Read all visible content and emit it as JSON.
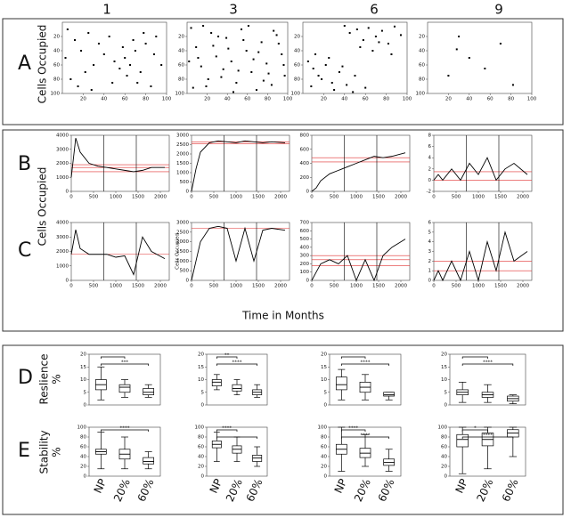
{
  "column_labels": [
    "1",
    "3",
    "6",
    "9"
  ],
  "row_labels": [
    "A",
    "B",
    "C",
    "D",
    "E"
  ],
  "y_titles": [
    "Cells Occupied",
    "Cells Occupied",
    "Reslience",
    "%",
    "Stability",
    "%"
  ],
  "x_title": "Time in Months",
  "chart_data": [
    {
      "type": "scatter",
      "xlim": [
        0,
        100
      ],
      "ylim": [
        100,
        0
      ],
      "xticks": [
        20,
        40,
        60,
        80,
        100
      ],
      "yticks": [
        20,
        40,
        60,
        80,
        100
      ],
      "color": "#000000",
      "x": [
        5,
        12,
        18,
        25,
        30,
        35,
        8,
        15,
        22,
        40,
        45,
        50,
        55,
        60,
        62,
        65,
        70,
        72,
        75,
        80,
        85,
        90,
        95,
        3,
        28,
        48,
        58,
        68,
        78,
        88
      ],
      "y": [
        10,
        25,
        40,
        15,
        60,
        30,
        80,
        90,
        70,
        45,
        20,
        55,
        65,
        50,
        75,
        60,
        40,
        85,
        70,
        30,
        90,
        20,
        60,
        50,
        95,
        85,
        35,
        25,
        15,
        45
      ]
    },
    {
      "type": "scatter",
      "xlim": [
        0,
        100
      ],
      "ylim": [
        100,
        0
      ],
      "xticks": [
        20,
        40,
        60,
        80,
        100
      ],
      "yticks": [
        20,
        40,
        60,
        80,
        100
      ],
      "color": "#000000",
      "x": [
        4,
        9,
        14,
        19,
        24,
        29,
        34,
        39,
        44,
        49,
        54,
        59,
        64,
        69,
        74,
        79,
        84,
        89,
        94,
        97,
        6,
        16,
        26,
        36,
        46,
        56,
        66,
        76,
        86,
        96,
        11,
        21,
        31,
        41,
        51,
        61,
        71,
        81,
        91,
        2
      ],
      "y": [
        8,
        35,
        62,
        90,
        15,
        48,
        77,
        22,
        55,
        85,
        10,
        40,
        70,
        95,
        28,
        58,
        88,
        18,
        45,
        75,
        92,
        5,
        33,
        66,
        98,
        25,
        52,
        82,
        12,
        60,
        50,
        80,
        20,
        37,
        68,
        5,
        42,
        72,
        30,
        55
      ]
    },
    {
      "type": "scatter",
      "xlim": [
        0,
        100
      ],
      "ylim": [
        100,
        0
      ],
      "xticks": [
        20,
        40,
        60,
        80,
        100
      ],
      "yticks": [
        20,
        40,
        60,
        80,
        100
      ],
      "color": "#000000",
      "x": [
        40,
        45,
        52,
        58,
        63,
        70,
        76,
        82,
        88,
        94,
        55,
        67,
        73,
        85,
        5,
        10,
        15,
        22,
        28,
        35,
        8,
        18,
        30,
        42,
        50,
        60,
        12,
        25,
        38,
        48
      ],
      "y": [
        5,
        15,
        10,
        25,
        8,
        20,
        12,
        30,
        6,
        18,
        35,
        40,
        28,
        45,
        55,
        65,
        75,
        60,
        85,
        70,
        90,
        80,
        95,
        88,
        75,
        92,
        45,
        50,
        62,
        98
      ]
    },
    {
      "type": "scatter",
      "xlim": [
        0,
        100
      ],
      "ylim": [
        100,
        0
      ],
      "xticks": [
        20,
        40,
        60,
        80,
        100
      ],
      "yticks": [
        20,
        40,
        60,
        80,
        100
      ],
      "color": "#000000",
      "x": [
        30,
        28,
        70,
        20,
        55,
        82,
        40
      ],
      "y": [
        20,
        38,
        30,
        75,
        65,
        88,
        50
      ]
    },
    {
      "type": "line",
      "xlim": [
        0,
        2200
      ],
      "ylim": [
        0,
        4000
      ],
      "xticks": [
        0,
        500,
        1000,
        1500,
        2000
      ],
      "yticks": [
        0,
        1000,
        2000,
        3000,
        4000
      ],
      "color": "#000000",
      "vlines": [
        730,
        1460
      ],
      "hlines": [
        1400,
        1700,
        1900
      ],
      "hline_color": "#e03030",
      "x": [
        0,
        100,
        200,
        400,
        600,
        800,
        1000,
        1200,
        1400,
        1600,
        1800,
        2100
      ],
      "values": [
        1000,
        3800,
        2800,
        2000,
        1800,
        1700,
        1600,
        1500,
        1400,
        1500,
        1700,
        1700
      ]
    },
    {
      "type": "line",
      "xlim": [
        0,
        2200
      ],
      "ylim": [
        0,
        3000
      ],
      "xticks": [
        0,
        500,
        1000,
        1500,
        2000
      ],
      "yticks": [
        0,
        500,
        1000,
        1500,
        2000,
        2500,
        3000
      ],
      "color": "#000000",
      "vlines": [
        730,
        1460
      ],
      "hlines": [
        2550,
        2650
      ],
      "hline_color": "#e03030",
      "x": [
        0,
        100,
        200,
        400,
        600,
        800,
        1000,
        1200,
        1400,
        1600,
        1800,
        2100
      ],
      "values": [
        0,
        1200,
        2100,
        2600,
        2700,
        2650,
        2600,
        2700,
        2650,
        2600,
        2650,
        2600
      ]
    },
    {
      "type": "line",
      "xlim": [
        0,
        2200
      ],
      "ylim": [
        0,
        800
      ],
      "xticks": [
        0,
        500,
        1000,
        1500,
        2000
      ],
      "yticks": [
        0,
        200,
        400,
        600,
        800
      ],
      "color": "#000000",
      "vlines": [
        730,
        1460
      ],
      "hlines": [
        420,
        480
      ],
      "hline_color": "#e03030",
      "x": [
        0,
        100,
        200,
        400,
        600,
        800,
        1000,
        1200,
        1400,
        1600,
        1800,
        2100
      ],
      "values": [
        0,
        50,
        150,
        250,
        300,
        350,
        400,
        450,
        500,
        480,
        500,
        550
      ]
    },
    {
      "type": "line",
      "xlim": [
        0,
        2200
      ],
      "ylim": [
        -2,
        8
      ],
      "xticks": [
        0,
        500,
        1000,
        1500,
        2000
      ],
      "yticks": [
        -2,
        0,
        2,
        4,
        6,
        8
      ],
      "color": "#000000",
      "vlines": [
        730,
        1460
      ],
      "hlines": [
        0,
        1.5
      ],
      "hline_color": "#e03030",
      "x": [
        0,
        100,
        200,
        400,
        600,
        800,
        1000,
        1200,
        1400,
        1600,
        1800,
        2100
      ],
      "values": [
        0,
        1,
        0,
        2,
        0,
        3,
        1,
        4,
        0,
        2,
        3,
        1
      ]
    },
    {
      "type": "line",
      "xlim": [
        0,
        2200
      ],
      "ylim": [
        0,
        4000
      ],
      "xticks": [
        0,
        500,
        1000,
        1500,
        2000
      ],
      "yticks": [
        0,
        1000,
        2000,
        3000,
        4000
      ],
      "color": "#000000",
      "vlines": [
        730,
        1460
      ],
      "hlines": [
        1800
      ],
      "hline_color": "#e03030",
      "x": [
        0,
        100,
        200,
        400,
        600,
        800,
        1000,
        1200,
        1400,
        1600,
        1800,
        2100
      ],
      "values": [
        1800,
        3500,
        2200,
        1800,
        1800,
        1800,
        1600,
        1700,
        400,
        3000,
        2000,
        1500
      ]
    },
    {
      "type": "line",
      "xlim": [
        0,
        2200
      ],
      "ylim": [
        0,
        3000
      ],
      "xticks": [
        0,
        500,
        1000,
        1500,
        2000
      ],
      "yticks": [
        0,
        500,
        1000,
        1500,
        2000,
        2500,
        3000
      ],
      "color": "#000000",
      "vlines": [
        730,
        1460
      ],
      "hlines": [
        2700
      ],
      "hline_color": "#e03030",
      "ylabel": "Cells Occupied",
      "x": [
        0,
        100,
        200,
        400,
        600,
        800,
        1000,
        1200,
        1400,
        1600,
        1800,
        2100
      ],
      "values": [
        0,
        1000,
        2000,
        2700,
        2800,
        2700,
        1000,
        2700,
        1000,
        2600,
        2700,
        2600
      ]
    },
    {
      "type": "line",
      "xlim": [
        0,
        2200
      ],
      "ylim": [
        0,
        700
      ],
      "xticks": [
        0,
        500,
        1000,
        1500,
        2000
      ],
      "yticks": [
        0,
        100,
        200,
        300,
        400,
        500,
        600,
        700
      ],
      "color": "#000000",
      "vlines": [
        730,
        1460
      ],
      "hlines": [
        180,
        250,
        300
      ],
      "hline_color": "#e03030",
      "x": [
        0,
        100,
        200,
        400,
        600,
        800,
        1000,
        1200,
        1400,
        1600,
        1800,
        2100
      ],
      "values": [
        0,
        100,
        200,
        250,
        200,
        300,
        0,
        250,
        0,
        300,
        400,
        500
      ]
    },
    {
      "type": "line",
      "xlim": [
        0,
        2200
      ],
      "ylim": [
        0,
        6
      ],
      "xticks": [
        0,
        500,
        1000,
        1500,
        2000
      ],
      "yticks": [
        0,
        1,
        2,
        3,
        4,
        5,
        6
      ],
      "color": "#000000",
      "vlines": [
        730,
        1460
      ],
      "hlines": [
        1,
        2
      ],
      "hline_color": "#e03030",
      "x": [
        0,
        100,
        200,
        400,
        600,
        800,
        1000,
        1200,
        1400,
        1600,
        1800,
        2100
      ],
      "values": [
        0,
        1,
        0,
        2,
        0,
        3,
        0,
        4,
        1,
        5,
        2,
        3
      ]
    },
    {
      "type": "box",
      "ylim": [
        0,
        20
      ],
      "yticks": [
        0,
        5,
        10,
        15,
        20
      ],
      "boxes": [
        [
          2,
          6,
          8,
          10,
          15
        ],
        [
          3,
          5,
          7,
          8,
          10
        ],
        [
          3,
          4,
          5,
          6.5,
          8
        ]
      ],
      "brackets": [
        {
          "from": 0,
          "to": 1
        },
        {
          "from": 0,
          "to": 2,
          "label": "***"
        }
      ]
    },
    {
      "type": "box",
      "ylim": [
        0,
        20
      ],
      "yticks": [
        0,
        5,
        10,
        15,
        20
      ],
      "boxes": [
        [
          6,
          7.5,
          9,
          10,
          12
        ],
        [
          4,
          5.5,
          6.5,
          8,
          10
        ],
        [
          3,
          4,
          5,
          6,
          8
        ]
      ],
      "brackets": [
        {
          "from": 0,
          "to": 1,
          "label": "**"
        },
        {
          "from": 0,
          "to": 2,
          "label": "****"
        }
      ]
    },
    {
      "type": "box",
      "ylim": [
        0,
        20
      ],
      "yticks": [
        0,
        5,
        10,
        15,
        20
      ],
      "boxes": [
        [
          2,
          6,
          8,
          11,
          14
        ],
        [
          2,
          5,
          7,
          9,
          12
        ],
        [
          2,
          3.5,
          4,
          5,
          5
        ]
      ],
      "brackets": [
        {
          "from": 0,
          "to": 1
        },
        {
          "from": 0,
          "to": 2,
          "label": "****"
        }
      ]
    },
    {
      "type": "box",
      "ylim": [
        0,
        20
      ],
      "yticks": [
        0,
        5,
        10,
        15,
        20
      ],
      "boxes": [
        [
          1,
          4,
          5,
          6,
          9
        ],
        [
          1,
          3,
          4,
          5,
          8
        ],
        [
          0.5,
          1.5,
          2.5,
          3.5,
          4
        ]
      ],
      "brackets": [
        {
          "from": 0,
          "to": 1
        },
        {
          "from": 0,
          "to": 2,
          "label": "****"
        }
      ]
    },
    {
      "type": "box",
      "ylim": [
        0,
        100
      ],
      "yticks": [
        0,
        20,
        40,
        60,
        80,
        100
      ],
      "categories": [
        "NP",
        "20%",
        "60%"
      ],
      "boxes": [
        [
          15,
          45,
          50,
          55,
          90
        ],
        [
          15,
          35,
          45,
          55,
          80
        ],
        [
          15,
          25,
          30,
          38,
          50
        ]
      ],
      "brackets": [
        {
          "from": 0,
          "to": 2,
          "label": "****"
        }
      ]
    },
    {
      "type": "box",
      "ylim": [
        0,
        100
      ],
      "yticks": [
        0,
        20,
        40,
        60,
        80,
        100
      ],
      "categories": [
        "NP",
        "20%",
        "60%"
      ],
      "boxes": [
        [
          30,
          58,
          65,
          72,
          90
        ],
        [
          30,
          47,
          55,
          62,
          80
        ],
        [
          20,
          30,
          37,
          43,
          60
        ]
      ],
      "brackets": [
        {
          "from": 0,
          "to": 1,
          "label": "****"
        },
        {
          "from": 0,
          "to": 2
        }
      ]
    },
    {
      "type": "box",
      "ylim": [
        0,
        100
      ],
      "yticks": [
        0,
        20,
        40,
        60,
        80,
        100
      ],
      "categories": [
        "NP",
        "20%",
        "60%"
      ],
      "boxes": [
        [
          10,
          45,
          55,
          65,
          100
        ],
        [
          20,
          38,
          47,
          57,
          85
        ],
        [
          10,
          22,
          28,
          35,
          55
        ]
      ],
      "brackets": [
        {
          "from": 0,
          "to": 1,
          "label": "****"
        },
        {
          "from": 0,
          "to": 2,
          "label": "****"
        }
      ]
    },
    {
      "type": "box",
      "ylim": [
        0,
        100
      ],
      "yticks": [
        0,
        20,
        40,
        60,
        80,
        100
      ],
      "categories": [
        "NP",
        "20%",
        "60%"
      ],
      "boxes": [
        [
          5,
          60,
          75,
          85,
          100
        ],
        [
          15,
          62,
          75,
          88,
          100
        ],
        [
          40,
          80,
          88,
          95,
          100
        ]
      ],
      "brackets": [
        {
          "from": 0,
          "to": 1,
          "label": "*"
        },
        {
          "from": 0,
          "to": 2,
          "label": "****"
        }
      ]
    }
  ]
}
